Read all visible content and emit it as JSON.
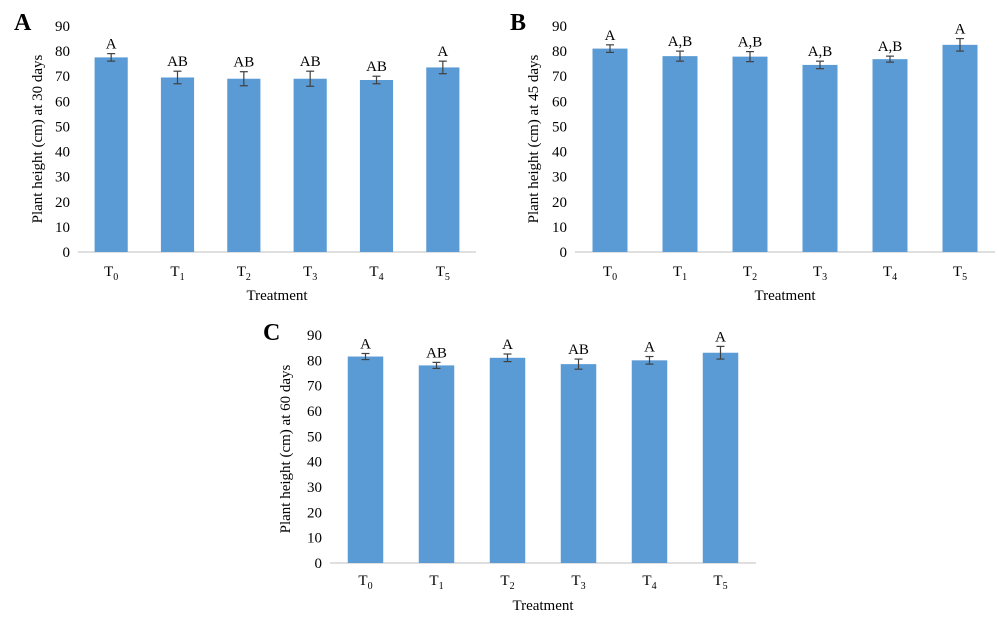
{
  "chart_data": [
    {
      "type": "bar",
      "panel": "A",
      "categories": [
        "T0",
        "T1",
        "T2",
        "T3",
        "T4",
        "T5"
      ],
      "values": [
        77.5,
        69.5,
        69.0,
        69.0,
        68.5,
        73.5
      ],
      "errors": [
        1.5,
        2.5,
        2.8,
        3.0,
        1.5,
        2.5
      ],
      "significance": [
        "A",
        "AB",
        "AB",
        "AB",
        "AB",
        "A"
      ],
      "xlabel": "Treatment",
      "ylabel": "Plant height (cm) at 30 days",
      "ylim": [
        0,
        90
      ],
      "yticks": [
        0,
        10,
        20,
        30,
        40,
        50,
        60,
        70,
        80,
        90
      ],
      "color": "#5b9bd5"
    },
    {
      "type": "bar",
      "panel": "B",
      "categories": [
        "T0",
        "T1",
        "T2",
        "T3",
        "T4",
        "T5"
      ],
      "values": [
        81.0,
        78.0,
        77.8,
        74.5,
        76.8,
        82.5
      ],
      "errors": [
        1.5,
        2.0,
        2.0,
        1.5,
        1.2,
        2.5
      ],
      "significance": [
        "A",
        "A,B",
        "A,B",
        "A,B",
        "A,B",
        "A"
      ],
      "xlabel": "Treatment",
      "ylabel": "Plant height (cm) at 45 days",
      "ylim": [
        0,
        90
      ],
      "yticks": [
        0,
        10,
        20,
        30,
        40,
        50,
        60,
        70,
        80,
        90
      ],
      "color": "#5b9bd5"
    },
    {
      "type": "bar",
      "panel": "C",
      "categories": [
        "T0",
        "T1",
        "T2",
        "T3",
        "T4",
        "T5"
      ],
      "values": [
        81.5,
        78.0,
        81.0,
        78.5,
        80.0,
        83.0
      ],
      "errors": [
        1.2,
        1.2,
        1.5,
        2.0,
        1.5,
        2.5
      ],
      "significance": [
        "A",
        "AB",
        "A",
        "AB",
        "A",
        "A"
      ],
      "xlabel": "Treatment",
      "ylabel": "Plant height (cm) at 60 days",
      "ylim": [
        0,
        90
      ],
      "yticks": [
        0,
        10,
        20,
        30,
        40,
        50,
        60,
        70,
        80,
        90
      ],
      "color": "#5b9bd5"
    }
  ]
}
